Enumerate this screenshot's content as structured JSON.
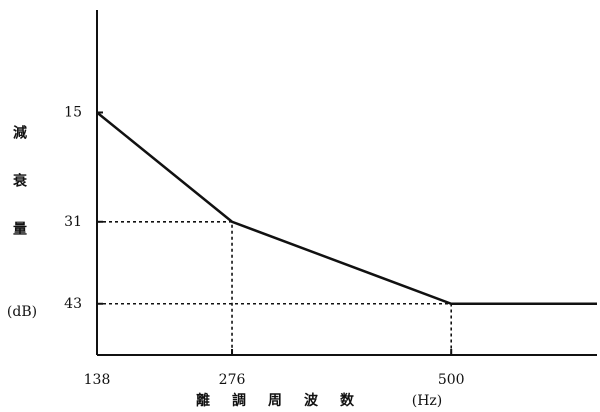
{
  "chart_data": {
    "type": "line",
    "y_label": "減衰量",
    "y_unit": "(dB)",
    "x_label": "離調周波数",
    "x_unit": "(Hz)",
    "x": [
      138,
      276,
      500,
      649
    ],
    "series": [
      {
        "color": "#111111",
        "values": [
          15,
          31,
          43,
          43
        ]
      }
    ],
    "xlim": [
      138,
      649
    ],
    "xticks": [
      138,
      276,
      500
    ],
    "ylim": [
      50.5,
      0
    ],
    "yticks": [
      15,
      31,
      43
    ],
    "guides": true
  }
}
